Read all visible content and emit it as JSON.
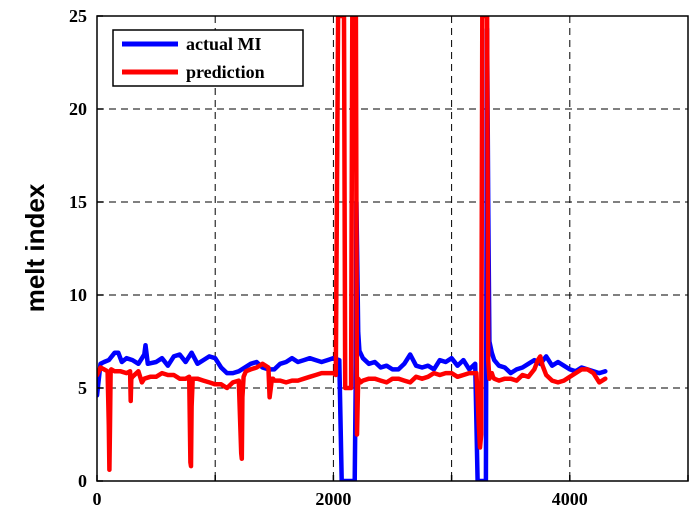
{
  "chart_data": {
    "type": "line",
    "xlabel": "",
    "ylabel": "melt index",
    "xlim": [
      0,
      5000
    ],
    "ylim": [
      0,
      25
    ],
    "xticks": [
      0,
      1000,
      2000,
      3000,
      4000,
      5000
    ],
    "xtick_labels": [
      "0",
      "",
      "2000",
      "",
      "4000",
      ""
    ],
    "yticks": [
      0,
      5,
      10,
      15,
      20,
      25
    ],
    "ytick_labels": [
      "0",
      "5",
      "10",
      "15",
      "20",
      "25"
    ],
    "grid": true,
    "legend_position": "top-left",
    "series": [
      {
        "name": "actual MI",
        "color": "#0000ff",
        "x": [
          0,
          30,
          60,
          100,
          150,
          180,
          210,
          250,
          300,
          350,
          400,
          410,
          430,
          500,
          550,
          600,
          650,
          700,
          750,
          800,
          850,
          900,
          950,
          1000,
          1050,
          1100,
          1150,
          1200,
          1250,
          1300,
          1350,
          1400,
          1450,
          1500,
          1550,
          1600,
          1650,
          1700,
          1750,
          1800,
          1850,
          1900,
          1950,
          2000,
          2050,
          2070,
          2080,
          2100,
          2150,
          2180,
          2190,
          2195,
          2200,
          2210,
          2220,
          2250,
          2300,
          2350,
          2400,
          2450,
          2500,
          2550,
          2600,
          2650,
          2700,
          2750,
          2800,
          2850,
          2900,
          2950,
          3000,
          3050,
          3100,
          3150,
          3200,
          3220,
          3240,
          3260,
          3290,
          3300,
          3310,
          3320,
          3340,
          3360,
          3400,
          3450,
          3500,
          3550,
          3600,
          3650,
          3700,
          3750,
          3800,
          3850,
          3900,
          3950,
          4000,
          4050,
          4100,
          4150,
          4200,
          4250,
          4300
        ],
        "values": [
          4.6,
          6.3,
          6.4,
          6.5,
          6.9,
          6.9,
          6.4,
          6.6,
          6.5,
          6.3,
          6.8,
          7.3,
          6.3,
          6.4,
          6.6,
          6.2,
          6.7,
          6.8,
          6.4,
          6.9,
          6.3,
          6.5,
          6.7,
          6.6,
          6.1,
          5.8,
          5.8,
          5.9,
          6.1,
          6.3,
          6.4,
          6.1,
          6.0,
          6.0,
          6.3,
          6.4,
          6.6,
          6.4,
          6.5,
          6.6,
          6.5,
          6.4,
          6.5,
          6.6,
          6.5,
          0.0,
          0.0,
          0.0,
          0.0,
          0.0,
          6.3,
          15.0,
          12.7,
          8.0,
          7.0,
          6.6,
          6.3,
          6.4,
          6.1,
          6.2,
          6.0,
          6.0,
          6.3,
          6.8,
          6.2,
          6.1,
          6.2,
          6.0,
          6.5,
          6.4,
          6.6,
          6.2,
          6.5,
          6.0,
          6.3,
          0.0,
          0.0,
          0.0,
          0.0,
          24.3,
          15.0,
          7.5,
          6.9,
          6.5,
          6.2,
          6.1,
          5.8,
          6.0,
          6.1,
          6.3,
          6.5,
          6.3,
          6.7,
          6.2,
          6.4,
          6.2,
          6.0,
          5.9,
          6.1,
          6.0,
          5.9,
          5.8,
          5.9
        ]
      },
      {
        "name": "prediction",
        "color": "#ff0000",
        "x": [
          0,
          30,
          60,
          90,
          100,
          105,
          110,
          115,
          120,
          150,
          200,
          250,
          280,
          285,
          290,
          300,
          350,
          380,
          400,
          450,
          500,
          550,
          600,
          650,
          700,
          750,
          780,
          790,
          795,
          800,
          810,
          850,
          900,
          950,
          1000,
          1050,
          1100,
          1150,
          1200,
          1220,
          1225,
          1230,
          1240,
          1260,
          1300,
          1350,
          1400,
          1450,
          1460,
          1470,
          1480,
          1490,
          1500,
          1550,
          1600,
          1650,
          1700,
          1750,
          1800,
          1850,
          1900,
          1950,
          2000,
          2020,
          2040,
          2060,
          2070,
          2080,
          2090,
          2100,
          2150,
          2160,
          2170,
          2180,
          2185,
          2190,
          2200,
          2210,
          2230,
          2250,
          2300,
          2350,
          2400,
          2450,
          2500,
          2550,
          2600,
          2650,
          2700,
          2750,
          2800,
          2850,
          2900,
          2950,
          3000,
          3050,
          3100,
          3150,
          3200,
          3210,
          3220,
          3230,
          3240,
          3250,
          3260,
          3270,
          3280,
          3290,
          3300,
          3310,
          3320,
          3340,
          3350,
          3360,
          3400,
          3450,
          3500,
          3550,
          3600,
          3650,
          3700,
          3730,
          3750,
          3770,
          3800,
          3850,
          3900,
          3950,
          4000,
          4050,
          4100,
          4150,
          4200,
          4250,
          4300
        ],
        "values": [
          5.7,
          6.1,
          6.0,
          5.9,
          3.0,
          0.6,
          3.0,
          5.8,
          6.0,
          5.9,
          5.9,
          5.8,
          5.9,
          4.3,
          5.5,
          5.6,
          5.9,
          5.3,
          5.5,
          5.6,
          5.6,
          5.8,
          5.7,
          5.7,
          5.5,
          5.5,
          5.6,
          1.0,
          0.8,
          4.0,
          5.5,
          5.5,
          5.4,
          5.3,
          5.2,
          5.2,
          5.0,
          5.3,
          5.4,
          1.5,
          1.2,
          4.5,
          5.6,
          5.9,
          6.0,
          6.1,
          6.3,
          6.1,
          4.5,
          5.0,
          5.5,
          5.5,
          5.4,
          5.4,
          5.3,
          5.4,
          5.4,
          5.5,
          5.6,
          5.7,
          5.8,
          5.8,
          5.8,
          5.7,
          25.0,
          25.0,
          25.0,
          25.0,
          25.0,
          5.0,
          5.0,
          25.0,
          25.0,
          25.0,
          25.0,
          25.0,
          2.5,
          5.5,
          5.3,
          5.4,
          5.5,
          5.5,
          5.4,
          5.3,
          5.5,
          5.5,
          5.4,
          5.3,
          5.6,
          5.5,
          5.6,
          5.8,
          5.7,
          5.8,
          5.8,
          5.6,
          5.7,
          5.8,
          5.8,
          5.8,
          4.5,
          3.0,
          1.8,
          2.5,
          25.0,
          25.0,
          25.0,
          25.0,
          25.0,
          6.5,
          5.5,
          5.8,
          5.6,
          5.5,
          5.4,
          5.5,
          5.5,
          5.4,
          5.7,
          5.6,
          6.0,
          6.5,
          6.7,
          6.2,
          5.7,
          5.4,
          5.3,
          5.4,
          5.6,
          5.8,
          6.0,
          6.0,
          5.8,
          5.3,
          5.5
        ]
      }
    ]
  }
}
